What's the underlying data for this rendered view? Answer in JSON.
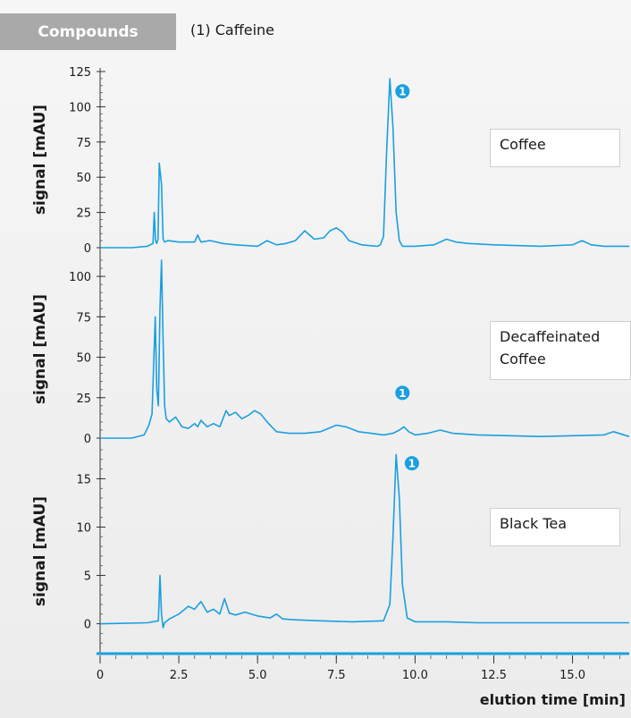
{
  "header": {
    "tab_label": "Compounds",
    "compound_text": "(1) Caffeine"
  },
  "peak_marker": "1",
  "xlabel": "elution time [min]",
  "colors": {
    "trace": "#1a9fe0",
    "marker": "#1a9fe0",
    "tab": "#a9a9a9"
  },
  "chart_data": [
    {
      "type": "line",
      "sample": "Coffee",
      "ylabel": "signal [mAU]",
      "ylim": [
        0,
        125
      ],
      "yticks": [
        0,
        25,
        50,
        75,
        100,
        125
      ],
      "xlim": [
        0,
        16.8
      ],
      "peak_marker_x": 9.6,
      "peak_marker_y": 111,
      "series": [
        {
          "x": [
            0,
            1.0,
            1.5,
            1.68,
            1.72,
            1.76,
            1.8,
            1.84,
            1.88,
            1.95,
            2.0,
            2.05,
            2.15,
            2.5,
            3.0,
            3.1,
            3.2,
            3.5,
            3.9,
            4.3,
            5.0,
            5.3,
            5.6,
            5.9,
            6.2,
            6.5,
            6.8,
            7.1,
            7.3,
            7.5,
            7.7,
            7.9,
            8.3,
            8.8,
            8.9,
            9.0,
            9.1,
            9.2,
            9.3,
            9.4,
            9.5,
            9.6,
            10.0,
            10.6,
            11.0,
            11.3,
            11.7,
            12.5,
            14.0,
            15.0,
            15.3,
            15.6,
            16.0,
            16.8
          ],
          "y": [
            0,
            0,
            1,
            3,
            25,
            5,
            3,
            6,
            60,
            45,
            6,
            4,
            5,
            4,
            4,
            9,
            4,
            5,
            3,
            2,
            1,
            5,
            2,
            3,
            5,
            12,
            6,
            7,
            12,
            14,
            11,
            5,
            2,
            1,
            2,
            8,
            70,
            120,
            85,
            25,
            5,
            1,
            1,
            2,
            6,
            4,
            3,
            2,
            1,
            2,
            5,
            2,
            1,
            1
          ]
        }
      ]
    },
    {
      "type": "line",
      "sample": "Decaffeinated Coffee",
      "ylabel": "signal [mAU]",
      "ylim": [
        0,
        110
      ],
      "yticks": [
        0,
        25,
        50,
        75,
        100
      ],
      "xlim": [
        0,
        16.8
      ],
      "peak_marker_x": 9.6,
      "peak_marker_y": 28,
      "series": [
        {
          "x": [
            0,
            1.0,
            1.4,
            1.55,
            1.65,
            1.75,
            1.8,
            1.85,
            1.9,
            1.95,
            2.0,
            2.05,
            2.1,
            2.2,
            2.4,
            2.6,
            2.8,
            3.0,
            3.1,
            3.2,
            3.4,
            3.6,
            3.8,
            3.9,
            4.0,
            4.1,
            4.3,
            4.5,
            4.7,
            4.9,
            5.1,
            5.3,
            5.6,
            6.0,
            6.5,
            7.0,
            7.5,
            7.8,
            8.2,
            8.6,
            9.0,
            9.3,
            9.5,
            9.65,
            9.8,
            10.0,
            10.4,
            10.8,
            11.2,
            12.0,
            14.0,
            16.0,
            16.3,
            16.8
          ],
          "y": [
            0,
            0,
            2,
            8,
            15,
            75,
            30,
            20,
            80,
            110,
            60,
            20,
            12,
            10,
            13,
            7,
            6,
            9,
            7,
            11,
            7,
            9,
            7,
            12,
            17,
            14,
            16,
            12,
            14,
            17,
            15,
            10,
            4,
            3,
            3,
            4,
            8,
            7,
            4,
            3,
            2,
            3,
            5,
            7,
            4,
            2,
            3,
            5,
            3,
            2,
            1,
            2,
            4,
            1
          ]
        }
      ]
    },
    {
      "type": "line",
      "sample": "Black Tea",
      "ylabel": "signal [mAU]",
      "ylim": [
        -3,
        18
      ],
      "yticks": [
        0,
        5,
        10,
        15
      ],
      "xlim": [
        0,
        16.8
      ],
      "xticks": [
        0,
        2.5,
        5.0,
        7.5,
        10.0,
        12.5,
        15.0
      ],
      "tick_labels": [
        "0",
        "2.5",
        "5.0",
        "7.5",
        "10.0",
        "12.5",
        "15.0"
      ],
      "peak_marker_x": 9.9,
      "peak_marker_y": 16.6,
      "series": [
        {
          "x": [
            0,
            1.5,
            1.85,
            1.9,
            1.95,
            2.0,
            2.05,
            2.2,
            2.5,
            2.8,
            3.0,
            3.2,
            3.4,
            3.6,
            3.8,
            3.95,
            4.1,
            4.3,
            4.6,
            5.0,
            5.4,
            5.6,
            5.8,
            6.2,
            7.0,
            8.0,
            9.0,
            9.2,
            9.3,
            9.4,
            9.5,
            9.6,
            9.75,
            10.0,
            11.0,
            12.0,
            13.0,
            14.0,
            15.0,
            16.0,
            16.8
          ],
          "y": [
            0,
            0.1,
            0.3,
            5.0,
            1.0,
            -0.4,
            0.1,
            0.5,
            1.0,
            1.8,
            1.5,
            2.3,
            1.2,
            1.5,
            1.0,
            2.6,
            1.1,
            0.9,
            1.2,
            0.8,
            0.6,
            1.0,
            0.5,
            0.4,
            0.3,
            0.2,
            0.3,
            2.0,
            9.0,
            17.5,
            13.0,
            4.0,
            0.6,
            0.2,
            0.2,
            0.1,
            0.1,
            0.1,
            0.1,
            0.1,
            0.1
          ]
        }
      ]
    }
  ]
}
